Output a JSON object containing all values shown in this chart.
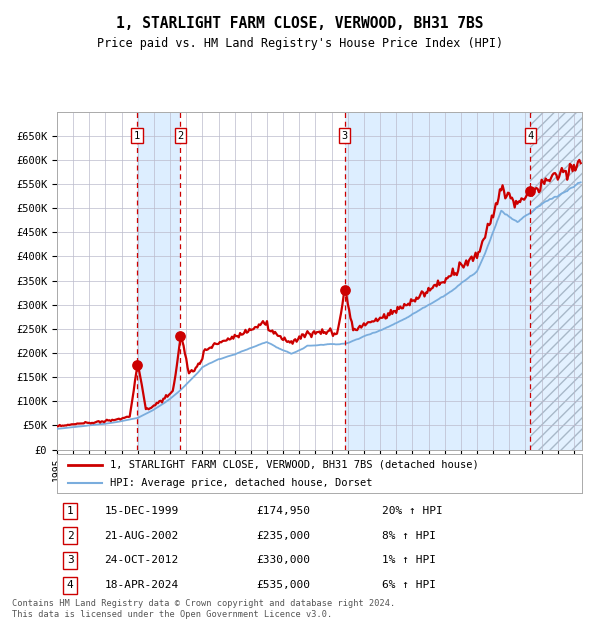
{
  "title": "1, STARLIGHT FARM CLOSE, VERWOOD, BH31 7BS",
  "subtitle": "Price paid vs. HM Land Registry's House Price Index (HPI)",
  "ylim": [
    0,
    700000
  ],
  "yticks": [
    0,
    50000,
    100000,
    150000,
    200000,
    250000,
    300000,
    350000,
    400000,
    450000,
    500000,
    550000,
    600000,
    650000
  ],
  "ytick_labels": [
    "£0",
    "£50K",
    "£100K",
    "£150K",
    "£200K",
    "£250K",
    "£300K",
    "£350K",
    "£400K",
    "£450K",
    "£500K",
    "£550K",
    "£600K",
    "£650K"
  ],
  "xlim_start": 1995.0,
  "xlim_end": 2027.5,
  "purchases": [
    {
      "num": 1,
      "date": "15-DEC-1999",
      "year": 1999.96,
      "price": 174950,
      "pct": "20%",
      "dir": "↑"
    },
    {
      "num": 2,
      "date": "21-AUG-2002",
      "year": 2002.64,
      "price": 235000,
      "pct": "8%",
      "dir": "↑"
    },
    {
      "num": 3,
      "date": "24-OCT-2012",
      "year": 2012.81,
      "price": 330000,
      "pct": "1%",
      "dir": "↑"
    },
    {
      "num": 4,
      "date": "18-APR-2024",
      "year": 2024.3,
      "price": 535000,
      "pct": "6%",
      "dir": "↑"
    }
  ],
  "hpi_color": "#7aaddd",
  "price_color": "#cc0000",
  "bg_color": "#ffffff",
  "grid_color": "#bbbbcc",
  "shade_color": "#ddeeff",
  "footer": "Contains HM Land Registry data © Crown copyright and database right 2024.\nThis data is licensed under the Open Government Licence v3.0.",
  "legend_line1": "1, STARLIGHT FARM CLOSE, VERWOOD, BH31 7BS (detached house)",
  "legend_line2": "HPI: Average price, detached house, Dorset"
}
